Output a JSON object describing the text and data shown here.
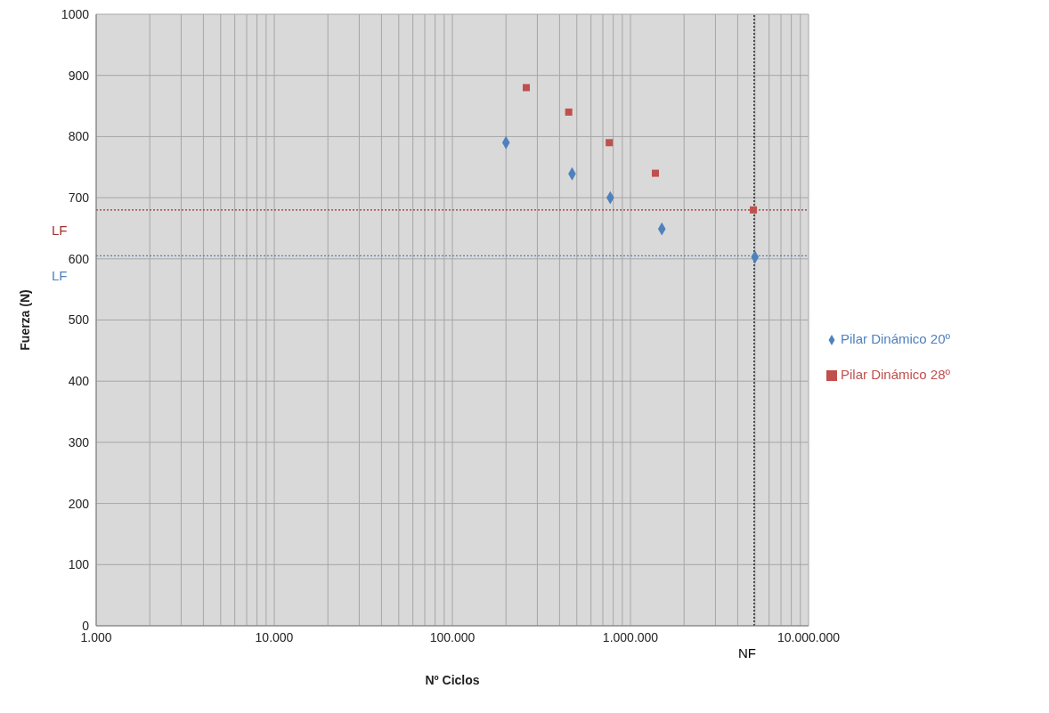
{
  "chart_data": {
    "type": "scatter",
    "xlabel": "Nº Ciclos",
    "ylabel": "Fuerza (N)",
    "log": "x",
    "grid": true,
    "legend": "right",
    "xlim": [
      1000,
      10000000
    ],
    "xticks": [
      {
        "value": 1000,
        "label": "1.000"
      },
      {
        "value": 2000,
        "label": null
      },
      {
        "value": 3000,
        "label": null
      },
      {
        "value": 4000,
        "label": null
      },
      {
        "value": 5000,
        "label": null
      },
      {
        "value": 6000,
        "label": null
      },
      {
        "value": 7000,
        "label": null
      },
      {
        "value": 8000,
        "label": null
      },
      {
        "value": 9000,
        "label": null
      },
      {
        "value": 10000,
        "label": "10.000"
      },
      {
        "value": 20000,
        "label": null
      },
      {
        "value": 30000,
        "label": null
      },
      {
        "value": 40000,
        "label": null
      },
      {
        "value": 50000,
        "label": null
      },
      {
        "value": 60000,
        "label": null
      },
      {
        "value": 70000,
        "label": null
      },
      {
        "value": 80000,
        "label": null
      },
      {
        "value": 90000,
        "label": null
      },
      {
        "value": 100000,
        "label": "100.000"
      },
      {
        "value": 200000,
        "label": null
      },
      {
        "value": 300000,
        "label": null
      },
      {
        "value": 400000,
        "label": null
      },
      {
        "value": 500000,
        "label": null
      },
      {
        "value": 600000,
        "label": null
      },
      {
        "value": 700000,
        "label": null
      },
      {
        "value": 800000,
        "label": null
      },
      {
        "value": 900000,
        "label": null
      },
      {
        "value": 1000000,
        "label": "1.000.000"
      },
      {
        "value": 2000000,
        "label": null
      },
      {
        "value": 3000000,
        "label": null
      },
      {
        "value": 4000000,
        "label": null
      },
      {
        "value": 5000000,
        "label": null
      },
      {
        "value": 6000000,
        "label": null
      },
      {
        "value": 7000000,
        "label": null
      },
      {
        "value": 8000000,
        "label": null
      },
      {
        "value": 9000000,
        "label": null
      },
      {
        "value": 10000000,
        "label": "10.000.000"
      }
    ],
    "ylim": [
      0,
      1000
    ],
    "yticks": [
      0,
      100,
      200,
      300,
      400,
      500,
      600,
      700,
      800,
      900,
      1000
    ],
    "series": [
      {
        "name": "Pilar Dinámico 20º",
        "color": "#4f81bd",
        "marker": "diamond",
        "x": [
          200000,
          470000,
          770000,
          1500000,
          5000000
        ],
        "values": [
          790,
          739,
          700,
          649,
          603
        ]
      },
      {
        "name": "Pilar Dinámico 28º",
        "color": "#c0504d",
        "marker": "square",
        "x": [
          260000,
          450000,
          760000,
          1380000,
          4900000
        ],
        "values": [
          880,
          840,
          790,
          740,
          680
        ]
      }
    ],
    "ref_lines": [
      {
        "axis": "y",
        "value": 680,
        "label": "LF",
        "color": "#a0312c",
        "line_style": "dotted"
      },
      {
        "axis": "y",
        "value": 605,
        "label": "LF",
        "color": "#4f81bd",
        "line_style": "dotted"
      },
      {
        "axis": "x",
        "value": 4950000,
        "label": "NF",
        "color": "#000000",
        "line_style": "dotted"
      }
    ]
  }
}
